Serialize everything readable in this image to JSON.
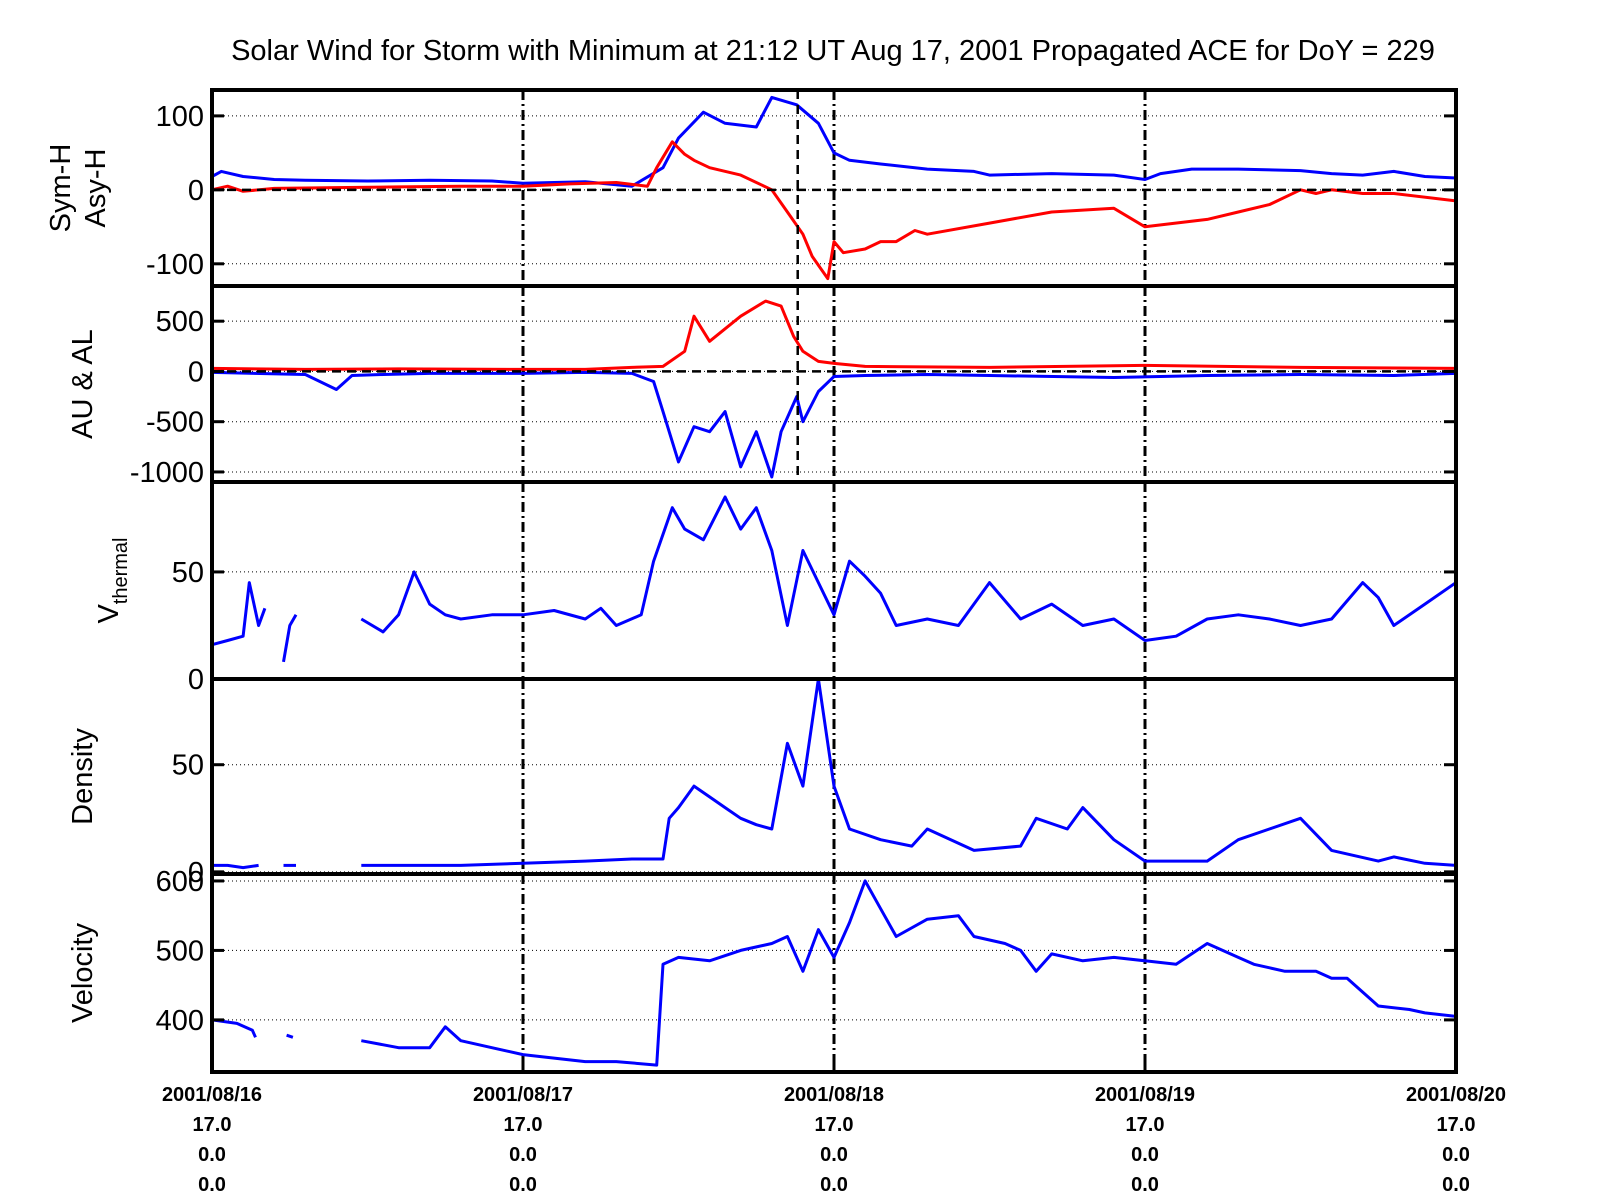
{
  "chart_data": {
    "type": "line",
    "title": "Solar Wind for Storm with Minimum at 21:12 UT Aug 17, 2001  Propagated ACE for DoY = 229",
    "x_range": [
      "2001-08-16T00:00",
      "2001-08-20T00:00"
    ],
    "storm_minimum_time": "2001-08-17T21:12",
    "x_ticks": [
      {
        "date": "2001-08-16T00:00",
        "lines": [
          "2001/08/16",
          "17.0",
          "0.0",
          "0.0"
        ]
      },
      {
        "date": "2001-08-17T00:00",
        "lines": [
          "2001/08/17",
          "17.0",
          "0.0",
          "0.0"
        ]
      },
      {
        "date": "2001-08-18T00:00",
        "lines": [
          "2001/08/18",
          "17.0",
          "0.0",
          "0.0"
        ]
      },
      {
        "date": "2001-08-19T00:00",
        "lines": [
          "2001/08/19",
          "17.0",
          "0.0",
          "0.0"
        ]
      },
      {
        "date": "2001-08-20T00:00",
        "lines": [
          "2001/08/20",
          "17.0",
          "0.0",
          "0.0"
        ]
      }
    ],
    "panels": [
      {
        "id": "symh",
        "ylabel_lines": [
          "Sym-H",
          "Asy-H"
        ],
        "ylim": [
          -130,
          135
        ],
        "yticks": [
          -100,
          0,
          100
        ],
        "ytick_labels": [
          "-100",
          "0",
          "100"
        ],
        "zero_line": true,
        "storm_marker": true,
        "series": [
          {
            "color": "#0000ff",
            "x": [
              0,
              0.03,
              0.1,
              0.2,
              0.3,
              0.5,
              0.7,
              0.9,
              1.0,
              1.2,
              1.35,
              1.45,
              1.5,
              1.58,
              1.65,
              1.75,
              1.8,
              1.88,
              1.95,
              2.0,
              2.05,
              2.15,
              2.3,
              2.45,
              2.5,
              2.7,
              2.9,
              3.0,
              3.05,
              3.15,
              3.3,
              3.5,
              3.6,
              3.7,
              3.8,
              3.9,
              4.0
            ],
            "y": [
              18,
              25,
              18,
              14,
              13,
              12,
              13,
              12,
              9,
              11,
              5,
              30,
              70,
              105,
              90,
              85,
              125,
              115,
              90,
              50,
              40,
              35,
              28,
              25,
              20,
              22,
              20,
              14,
              22,
              28,
              28,
              26,
              22,
              20,
              25,
              18,
              16
            ]
          },
          {
            "color": "#ff0000",
            "x": [
              0,
              0.05,
              0.1,
              0.2,
              0.4,
              0.6,
              0.8,
              1.0,
              1.15,
              1.3,
              1.4,
              1.43,
              1.48,
              1.52,
              1.55,
              1.6,
              1.7,
              1.8,
              1.85,
              1.9,
              1.93,
              1.98,
              2.0,
              2.03,
              2.1,
              2.15,
              2.2,
              2.26,
              2.3,
              2.5,
              2.7,
              2.9,
              3.0,
              3.2,
              3.3,
              3.4,
              3.5,
              3.55,
              3.6,
              3.7,
              3.8,
              4.0
            ],
            "y": [
              0,
              5,
              -2,
              2,
              3,
              4,
              5,
              5,
              8,
              10,
              5,
              30,
              65,
              48,
              40,
              30,
              20,
              0,
              -30,
              -60,
              -90,
              -120,
              -70,
              -85,
              -80,
              -70,
              -70,
              -55,
              -60,
              -45,
              -30,
              -25,
              -50,
              -40,
              -30,
              -20,
              0,
              -5,
              0,
              -5,
              -5,
              -15
            ]
          }
        ]
      },
      {
        "id": "aual",
        "ylabel_lines": [
          "AU & AL"
        ],
        "ylim": [
          -1100,
          850
        ],
        "yticks": [
          -1000,
          -500,
          0,
          500
        ],
        "ytick_labels": [
          "-1000",
          "-500",
          "0",
          "500"
        ],
        "zero_line": true,
        "storm_marker": true,
        "series": [
          {
            "color": "#0000ff",
            "x": [
              0,
              0.3,
              0.4,
              0.45,
              0.55,
              0.7,
              1.0,
              1.2,
              1.35,
              1.42,
              1.45,
              1.5,
              1.55,
              1.6,
              1.65,
              1.7,
              1.75,
              1.8,
              1.83,
              1.88,
              1.9,
              1.95,
              2.0,
              2.1,
              2.3,
              2.5,
              2.9,
              3.2,
              3.5,
              3.8,
              4.0
            ],
            "y": [
              -10,
              -30,
              -180,
              -40,
              -30,
              -20,
              -20,
              -10,
              -20,
              -100,
              -400,
              -900,
              -550,
              -600,
              -400,
              -950,
              -600,
              -1050,
              -600,
              -250,
              -500,
              -200,
              -50,
              -40,
              -30,
              -40,
              -60,
              -40,
              -30,
              -40,
              -20
            ]
          },
          {
            "color": "#ff0000",
            "x": [
              0,
              0.3,
              0.6,
              1.0,
              1.2,
              1.35,
              1.45,
              1.52,
              1.55,
              1.6,
              1.7,
              1.78,
              1.83,
              1.87,
              1.9,
              1.95,
              2.0,
              2.1,
              2.5,
              3.0,
              3.5,
              4.0
            ],
            "y": [
              30,
              20,
              25,
              20,
              20,
              40,
              50,
              200,
              550,
              300,
              550,
              700,
              650,
              350,
              200,
              100,
              80,
              50,
              40,
              60,
              40,
              30
            ]
          }
        ]
      },
      {
        "id": "vthermal",
        "ylabel_main": "V",
        "ylabel_sub": "thermal",
        "ylim": [
          0,
          92
        ],
        "yticks": [
          0,
          50
        ],
        "ytick_labels": [
          "0",
          "50"
        ],
        "zero_line": false,
        "storm_marker": false,
        "series": [
          {
            "color": "#0000ff",
            "x": [
              0,
              0.05,
              0.1,
              0.12,
              0.15,
              0.17
            ],
            "y": [
              16,
              18,
              20,
              45,
              25,
              33
            ]
          },
          {
            "color": "#0000ff",
            "x": [
              0.23,
              0.25,
              0.27
            ],
            "y": [
              8,
              25,
              30
            ]
          },
          {
            "color": "#0000ff",
            "x": [
              0.48,
              0.55,
              0.6,
              0.65,
              0.7,
              0.75,
              0.8,
              0.9,
              1.0,
              1.1,
              1.2,
              1.25,
              1.3,
              1.38,
              1.42,
              1.48,
              1.52,
              1.58,
              1.65,
              1.7,
              1.75,
              1.8,
              1.85,
              1.9,
              1.95,
              2.0,
              2.05,
              2.1,
              2.15,
              2.2,
              2.3,
              2.4,
              2.5,
              2.6,
              2.7,
              2.8,
              2.9,
              3.0,
              3.1,
              3.2,
              3.3,
              3.4,
              3.5,
              3.6,
              3.7,
              3.75,
              3.8,
              3.9,
              4.0
            ],
            "y": [
              28,
              22,
              30,
              50,
              35,
              30,
              28,
              30,
              30,
              32,
              28,
              33,
              25,
              30,
              55,
              80,
              70,
              65,
              85,
              70,
              80,
              60,
              25,
              60,
              45,
              30,
              55,
              48,
              40,
              25,
              28,
              25,
              45,
              28,
              35,
              25,
              28,
              18,
              20,
              28,
              30,
              28,
              25,
              28,
              45,
              38,
              25,
              35,
              45
            ]
          }
        ]
      },
      {
        "id": "density",
        "ylabel_lines": [
          "Density"
        ],
        "ylim": [
          -1,
          90
        ],
        "yticks": [
          0,
          50
        ],
        "ytick_labels": [
          "0",
          "50"
        ],
        "zero_line": false,
        "storm_marker": false,
        "series": [
          {
            "color": "#0000ff",
            "x": [
              0,
              0.05,
              0.1,
              0.15
            ],
            "y": [
              3,
              3,
              2,
              3
            ]
          },
          {
            "color": "#0000ff",
            "x": [
              0.23,
              0.27
            ],
            "y": [
              3,
              3
            ]
          },
          {
            "color": "#0000ff",
            "x": [
              0.48,
              0.6,
              0.8,
              1.0,
              1.2,
              1.35,
              1.45,
              1.47,
              1.5,
              1.55,
              1.6,
              1.65,
              1.7,
              1.75,
              1.8,
              1.85,
              1.9,
              1.95,
              2.0,
              2.05,
              2.15,
              2.25,
              2.3,
              2.45,
              2.6,
              2.65,
              2.75,
              2.8,
              2.9,
              3.0,
              3.1,
              3.2,
              3.3,
              3.4,
              3.5,
              3.6,
              3.75,
              3.8,
              3.9,
              4.0
            ],
            "y": [
              3,
              3,
              3,
              4,
              5,
              6,
              6,
              25,
              30,
              40,
              35,
              30,
              25,
              22,
              20,
              60,
              40,
              90,
              40,
              20,
              15,
              12,
              20,
              10,
              12,
              25,
              20,
              30,
              15,
              5,
              5,
              5,
              15,
              20,
              25,
              10,
              5,
              7,
              4,
              3
            ]
          }
        ]
      },
      {
        "id": "velocity",
        "ylabel_lines": [
          "Velocity"
        ],
        "ylim": [
          325,
          610
        ],
        "yticks": [
          400,
          500,
          600
        ],
        "ytick_labels": [
          "400",
          "500",
          "600"
        ],
        "zero_line": false,
        "storm_marker": false,
        "series": [
          {
            "color": "#0000ff",
            "x": [
              0,
              0.08,
              0.13,
              0.14
            ],
            "y": [
              400,
              395,
              385,
              375
            ]
          },
          {
            "color": "#0000ff",
            "x": [
              0.24,
              0.26
            ],
            "y": [
              378,
              375
            ]
          },
          {
            "color": "#0000ff",
            "x": [
              0.48,
              0.6,
              0.7,
              0.75,
              0.8,
              0.9,
              1.0,
              1.1,
              1.2,
              1.3,
              1.43,
              1.45,
              1.5,
              1.6,
              1.7,
              1.8,
              1.85,
              1.9,
              1.95,
              2.0,
              2.05,
              2.1,
              2.15,
              2.2,
              2.3,
              2.4,
              2.45,
              2.55,
              2.6,
              2.65,
              2.7,
              2.8,
              2.9,
              3.0,
              3.1,
              3.2,
              3.3,
              3.35,
              3.45,
              3.55,
              3.6,
              3.65,
              3.75,
              3.85,
              3.9,
              4.0
            ],
            "y": [
              370,
              360,
              360,
              390,
              370,
              360,
              350,
              345,
              340,
              340,
              335,
              480,
              490,
              485,
              500,
              510,
              520,
              470,
              530,
              490,
              540,
              600,
              560,
              520,
              545,
              550,
              520,
              510,
              500,
              470,
              495,
              485,
              490,
              485,
              480,
              510,
              490,
              480,
              470,
              470,
              460,
              460,
              420,
              415,
              410,
              405
            ]
          }
        ]
      }
    ]
  }
}
